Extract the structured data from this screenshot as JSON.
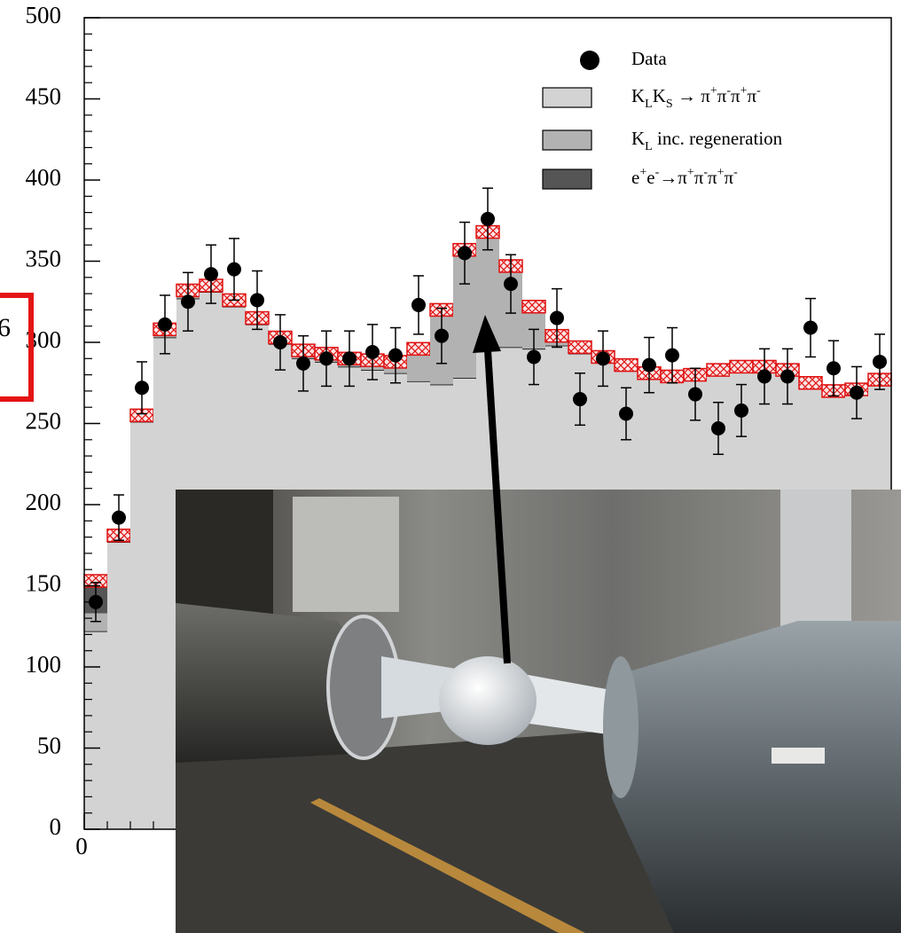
{
  "chart_data": {
    "type": "histogram",
    "annotation": "6",
    "bins": [
      0,
      1,
      2,
      3,
      4,
      5,
      6,
      7,
      8,
      9,
      10,
      11,
      12,
      13,
      14,
      15,
      16,
      17,
      18,
      19,
      20,
      21,
      22,
      23,
      24,
      25,
      26,
      27,
      28,
      29,
      30,
      31,
      32,
      33,
      34,
      35
    ],
    "xlim": [
      0,
      35
    ],
    "xticks": [
      0
    ],
    "ylim": [
      0,
      500
    ],
    "yticks": [
      0,
      50,
      100,
      150,
      200,
      250,
      300,
      350,
      400,
      450,
      500
    ],
    "series": [
      {
        "name": "Data",
        "color": "#000000",
        "values": [
          140,
          192,
          272,
          311,
          325,
          342,
          345,
          326,
          300,
          287,
          290,
          290,
          294,
          292,
          323,
          304,
          355,
          376,
          336,
          291,
          315,
          265,
          290,
          256,
          286,
          292,
          268,
          247,
          258,
          279,
          279,
          309,
          284,
          269,
          288
        ],
        "errors": [
          12,
          14,
          16,
          18,
          18,
          18,
          19,
          18,
          17,
          17,
          17,
          17,
          17,
          17,
          18,
          17,
          19,
          19,
          18,
          17,
          18,
          16,
          17,
          16,
          17,
          17,
          16,
          16,
          16,
          17,
          17,
          18,
          17,
          16,
          17
        ]
      },
      {
        "name": "KLKS → π+π-π+π-",
        "color": "#d3d3d3",
        "values": [
          122,
          177,
          251,
          303,
          327,
          331,
          322,
          311,
          299,
          290,
          288,
          285,
          283,
          281,
          276,
          274,
          278,
          297,
          297,
          296,
          298,
          293,
          288,
          283,
          278,
          276,
          277,
          280,
          282,
          282,
          280,
          272,
          267,
          268,
          274
        ]
      },
      {
        "name": "KL inc. regeneration",
        "color": "#b2b2b2",
        "values": [
          11,
          1,
          2,
          3,
          3,
          2,
          2,
          2,
          2,
          3,
          3,
          3,
          4,
          5,
          18,
          44,
          77,
          69,
          48,
          24,
          4,
          2,
          1,
          1,
          1,
          1,
          1,
          1,
          1,
          1,
          1,
          1,
          1,
          1,
          1
        ]
      },
      {
        "name": "e+e-→π+π-π+π-",
        "color": "#555555",
        "values": [
          20,
          3,
          2,
          2,
          2,
          2,
          2,
          2,
          2,
          2,
          2,
          2,
          2,
          2,
          2,
          2,
          2,
          2,
          2,
          2,
          2,
          2,
          2,
          2,
          2,
          2,
          2,
          2,
          2,
          2,
          2,
          2,
          2,
          2,
          2
        ]
      }
    ]
  }
}
